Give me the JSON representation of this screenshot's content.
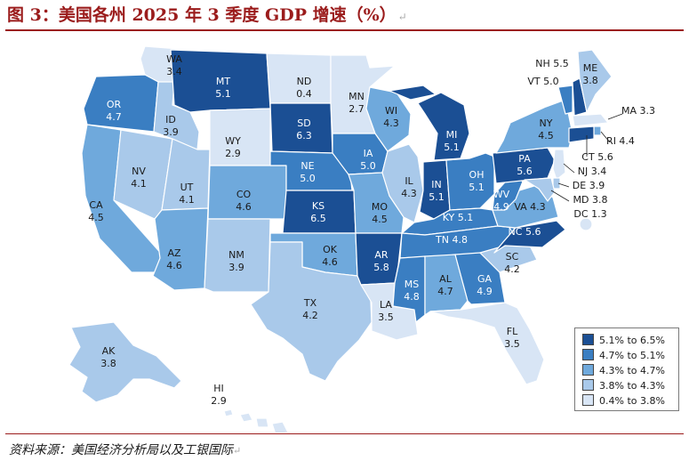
{
  "title": "图 3：美国各州 2025 年 3 季度 GDP 增速（%）",
  "return_mark": "↵",
  "source": "资料来源：美国经济分析局以及工银国际",
  "colors": {
    "bin1": "#1b4f94",
    "bin2": "#3a7ec2",
    "bin3": "#6fa9dc",
    "bin4": "#a9c9ea",
    "bin5": "#d8e5f5",
    "border": "#ffffff"
  },
  "legend": [
    {
      "label": "5.1% to 6.5%",
      "color_key": "bin1"
    },
    {
      "label": "4.7% to 5.1%",
      "color_key": "bin2"
    },
    {
      "label": "4.3% to 4.7%",
      "color_key": "bin3"
    },
    {
      "label": "3.8% to 4.3%",
      "color_key": "bin4"
    },
    {
      "label": "0.4% to 3.8%",
      "color_key": "bin5"
    }
  ],
  "states": [
    {
      "abbr": "WA",
      "value": "3.4",
      "bin": "bin5"
    },
    {
      "abbr": "OR",
      "value": "4.7",
      "bin": "bin2"
    },
    {
      "abbr": "CA",
      "value": "4.5",
      "bin": "bin3"
    },
    {
      "abbr": "NV",
      "value": "4.1",
      "bin": "bin4"
    },
    {
      "abbr": "ID",
      "value": "3.9",
      "bin": "bin4"
    },
    {
      "abbr": "UT",
      "value": "4.1",
      "bin": "bin4"
    },
    {
      "abbr": "AZ",
      "value": "4.6",
      "bin": "bin3"
    },
    {
      "abbr": "MT",
      "value": "5.1",
      "bin": "bin1"
    },
    {
      "abbr": "WY",
      "value": "2.9",
      "bin": "bin5"
    },
    {
      "abbr": "CO",
      "value": "4.6",
      "bin": "bin3"
    },
    {
      "abbr": "NM",
      "value": "3.9",
      "bin": "bin4"
    },
    {
      "abbr": "ND",
      "value": "0.4",
      "bin": "bin5"
    },
    {
      "abbr": "SD",
      "value": "6.3",
      "bin": "bin1"
    },
    {
      "abbr": "NE",
      "value": "5.0",
      "bin": "bin2"
    },
    {
      "abbr": "KS",
      "value": "6.5",
      "bin": "bin1"
    },
    {
      "abbr": "OK",
      "value": "4.6",
      "bin": "bin3"
    },
    {
      "abbr": "TX",
      "value": "4.2",
      "bin": "bin4"
    },
    {
      "abbr": "MN",
      "value": "2.7",
      "bin": "bin5"
    },
    {
      "abbr": "IA",
      "value": "5.0",
      "bin": "bin2"
    },
    {
      "abbr": "MO",
      "value": "4.5",
      "bin": "bin3"
    },
    {
      "abbr": "AR",
      "value": "5.8",
      "bin": "bin1"
    },
    {
      "abbr": "LA",
      "value": "3.5",
      "bin": "bin5"
    },
    {
      "abbr": "WI",
      "value": "4.3",
      "bin": "bin3"
    },
    {
      "abbr": "IL",
      "value": "4.3",
      "bin": "bin4"
    },
    {
      "abbr": "MI",
      "value": "5.1",
      "bin": "bin1"
    },
    {
      "abbr": "IN",
      "value": "5.1",
      "bin": "bin1"
    },
    {
      "abbr": "OH",
      "value": "5.1",
      "bin": "bin2"
    },
    {
      "abbr": "KY",
      "value": "5.1",
      "bin": "bin2"
    },
    {
      "abbr": "TN",
      "value": "4.8",
      "bin": "bin2"
    },
    {
      "abbr": "MS",
      "value": "4.8",
      "bin": "bin2"
    },
    {
      "abbr": "AL",
      "value": "4.7",
      "bin": "bin3"
    },
    {
      "abbr": "GA",
      "value": "4.9",
      "bin": "bin2"
    },
    {
      "abbr": "FL",
      "value": "3.5",
      "bin": "bin5"
    },
    {
      "abbr": "SC",
      "value": "4.2",
      "bin": "bin4"
    },
    {
      "abbr": "NC",
      "value": "5.6",
      "bin": "bin1"
    },
    {
      "abbr": "VA",
      "value": "4.3",
      "bin": "bin3"
    },
    {
      "abbr": "WV",
      "value": "4.9",
      "bin": "bin2"
    },
    {
      "abbr": "PA",
      "value": "5.6",
      "bin": "bin1"
    },
    {
      "abbr": "NY",
      "value": "4.5",
      "bin": "bin3"
    },
    {
      "abbr": "VT",
      "value": "5.0",
      "bin": "bin2"
    },
    {
      "abbr": "NH",
      "value": "5.5",
      "bin": "bin1"
    },
    {
      "abbr": "ME",
      "value": "3.8",
      "bin": "bin4"
    },
    {
      "abbr": "MA",
      "value": "3.3",
      "bin": "bin5"
    },
    {
      "abbr": "RI",
      "value": "4.4",
      "bin": "bin3"
    },
    {
      "abbr": "CT",
      "value": "5.6",
      "bin": "bin1"
    },
    {
      "abbr": "NJ",
      "value": "3.4",
      "bin": "bin5"
    },
    {
      "abbr": "DE",
      "value": "3.9",
      "bin": "bin4"
    },
    {
      "abbr": "MD",
      "value": "3.8",
      "bin": "bin4"
    },
    {
      "abbr": "DC",
      "value": "1.3",
      "bin": "bin5"
    },
    {
      "abbr": "AK",
      "value": "3.8",
      "bin": "bin4"
    },
    {
      "abbr": "HI",
      "value": "2.9",
      "bin": "bin5"
    }
  ]
}
